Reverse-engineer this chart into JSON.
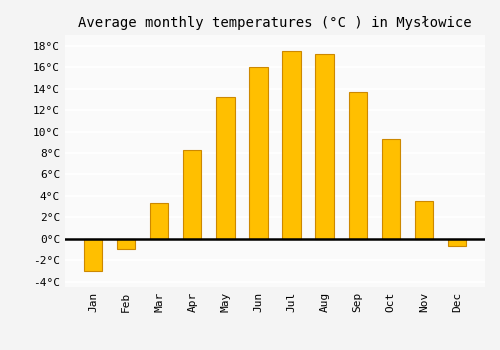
{
  "title": "Average monthly temperatures (°C ) in Mysłowice",
  "months": [
    "Jan",
    "Feb",
    "Mar",
    "Apr",
    "May",
    "Jun",
    "Jul",
    "Aug",
    "Sep",
    "Oct",
    "Nov",
    "Dec"
  ],
  "values": [
    -3.0,
    -1.0,
    3.3,
    8.3,
    13.2,
    16.0,
    17.5,
    17.2,
    13.7,
    9.3,
    3.5,
    -0.7
  ],
  "bar_color": "#FFBF00",
  "bar_edge_color": "#CC8800",
  "background_color": "#F4F4F4",
  "plot_bg_color": "#FAFAFA",
  "grid_color": "#FFFFFF",
  "zero_line_color": "#000000",
  "ylim": [
    -4.5,
    19.0
  ],
  "yticks": [
    -4,
    -2,
    0,
    2,
    4,
    6,
    8,
    10,
    12,
    14,
    16,
    18
  ],
  "ytick_labels": [
    "-4°C",
    "-2°C",
    "0°C",
    "2°C",
    "4°C",
    "6°C",
    "8°C",
    "10°C",
    "12°C",
    "14°C",
    "16°C",
    "18°C"
  ],
  "title_fontsize": 10,
  "tick_fontsize": 8,
  "bar_width": 0.55
}
